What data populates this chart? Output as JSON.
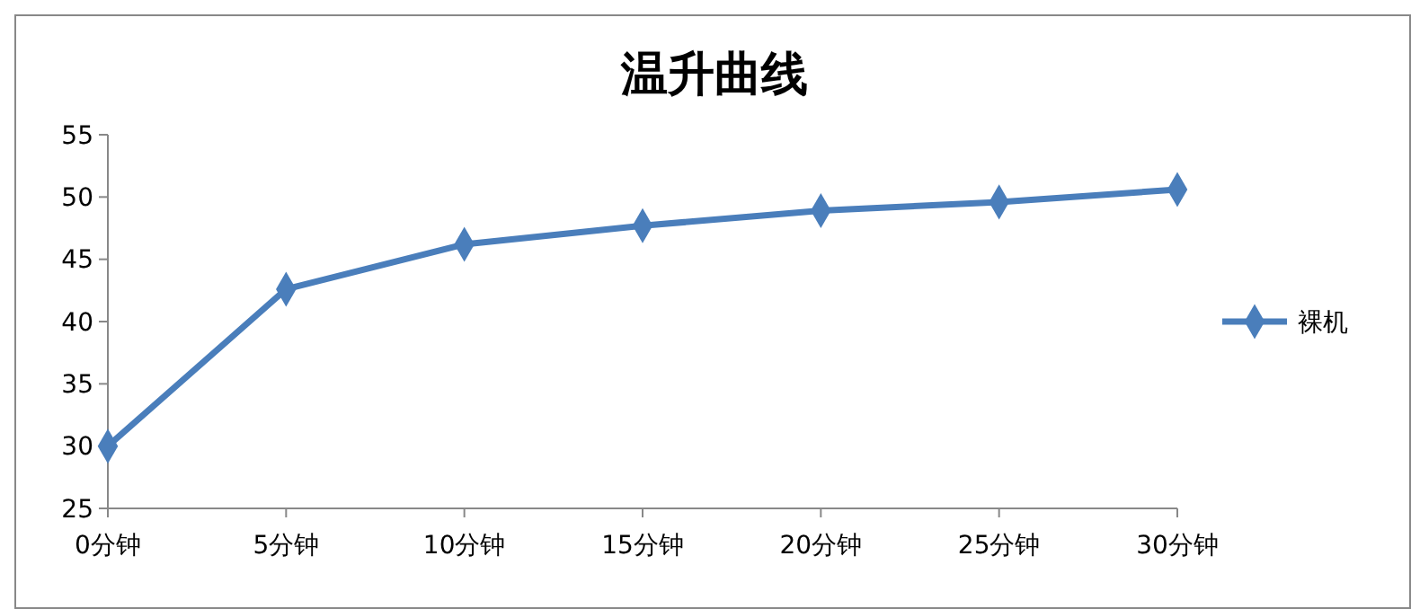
{
  "chart_data": {
    "type": "line",
    "title": "温升曲线",
    "categories": [
      "0分钟",
      "5分钟",
      "10分钟",
      "15分钟",
      "20分钟",
      "25分钟",
      "30分钟"
    ],
    "series": [
      {
        "name": "裸机",
        "color": "#4a7ebb",
        "values": [
          30,
          42.6,
          46.2,
          47.7,
          48.9,
          49.6,
          50.6
        ]
      }
    ],
    "ylim": [
      25,
      55
    ],
    "yticks": [
      25,
      30,
      35,
      40,
      45,
      50,
      55
    ],
    "grid": false,
    "legend": "right",
    "marker": "diamond",
    "line_style": "solid"
  }
}
